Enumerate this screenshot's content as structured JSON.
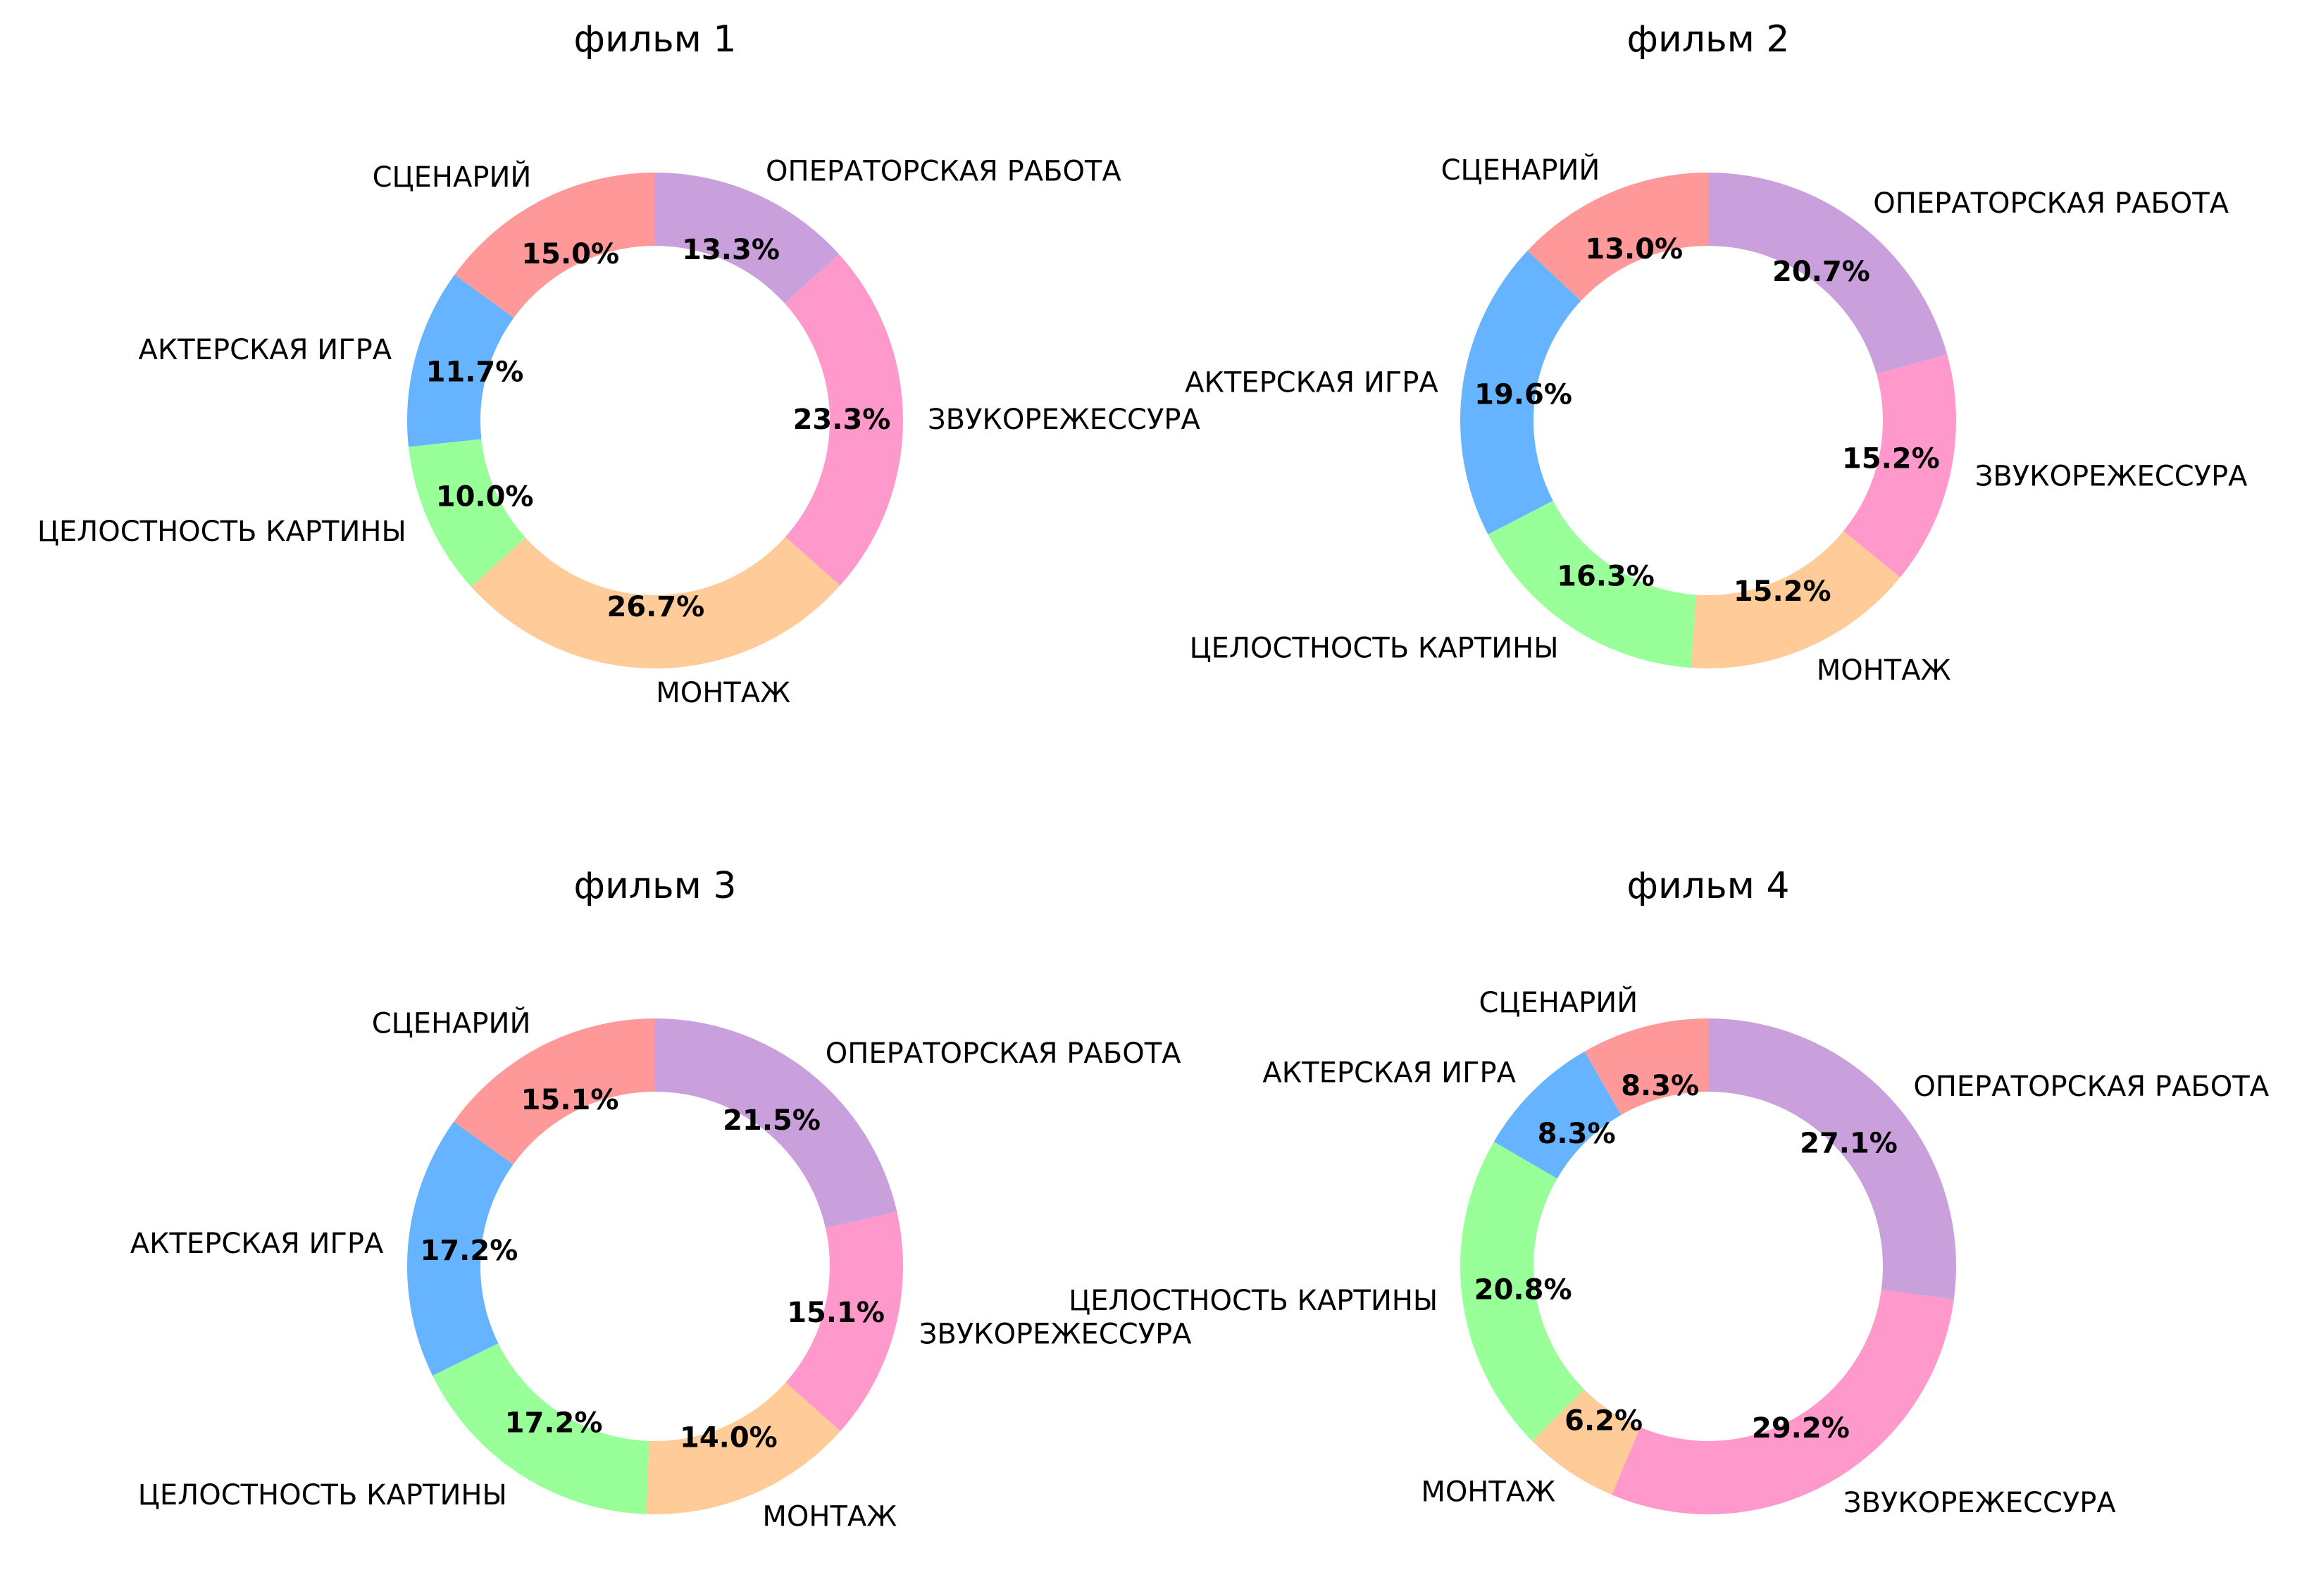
{
  "colors": [
    "#ff9999",
    "#66b3ff",
    "#99ff99",
    "#ffcc99",
    "#ff99cc",
    "#c9a0dc"
  ],
  "chart_data": [
    {
      "type": "pie",
      "title": "фильм 1",
      "labels": [
        "СЦЕНАРИЙ",
        "АКТЕРСКАЯ ИГРА",
        "ЦЕЛОСТНОСТЬ КАРТИНЫ",
        "МОНТАЖ",
        "ЗВУКОРЕЖЕССУРА",
        "ОПЕРАТОРСКАЯ РАБОТА"
      ],
      "values": [
        15.0,
        11.7,
        10.0,
        26.7,
        23.3,
        13.3
      ],
      "pct_labels": [
        "15.0%",
        "11.7%",
        "10.0%",
        "26.7%",
        "23.3%",
        "13.3%"
      ]
    },
    {
      "type": "pie",
      "title": "фильм 2",
      "labels": [
        "СЦЕНАРИЙ",
        "АКТЕРСКАЯ ИГРА",
        "ЦЕЛОСТНОСТЬ КАРТИНЫ",
        "МОНТАЖ",
        "ЗВУКОРЕЖЕССУРА",
        "ОПЕРАТОРСКАЯ РАБОТА"
      ],
      "values": [
        13.0,
        19.6,
        16.3,
        15.2,
        15.2,
        20.7
      ],
      "pct_labels": [
        "13.0%",
        "19.6%",
        "16.3%",
        "15.2%",
        "15.2%",
        "20.7%"
      ]
    },
    {
      "type": "pie",
      "title": "фильм 3",
      "labels": [
        "СЦЕНАРИЙ",
        "АКТЕРСКАЯ ИГРА",
        "ЦЕЛОСТНОСТЬ КАРТИНЫ",
        "МОНТАЖ",
        "ЗВУКОРЕЖЕССУРА",
        "ОПЕРАТОРСКАЯ РАБОТА"
      ],
      "values": [
        15.1,
        17.2,
        17.2,
        14.0,
        15.1,
        21.5
      ],
      "pct_labels": [
        "15.1%",
        "17.2%",
        "17.2%",
        "14.0%",
        "15.1%",
        "21.5%"
      ]
    },
    {
      "type": "pie",
      "title": "фильм 4",
      "labels": [
        "СЦЕНАРИЙ",
        "АКТЕРСКАЯ ИГРА",
        "ЦЕЛОСТНОСТЬ КАРТИНЫ",
        "МОНТАЖ",
        "ЗВУКОРЕЖЕССУРА",
        "ОПЕРАТОРСКАЯ РАБОТА"
      ],
      "values": [
        8.3,
        8.3,
        20.8,
        6.2,
        29.2,
        27.1
      ],
      "pct_labels": [
        "8.3%",
        "8.3%",
        "20.8%",
        "6.2%",
        "29.2%",
        "27.1%"
      ]
    }
  ]
}
